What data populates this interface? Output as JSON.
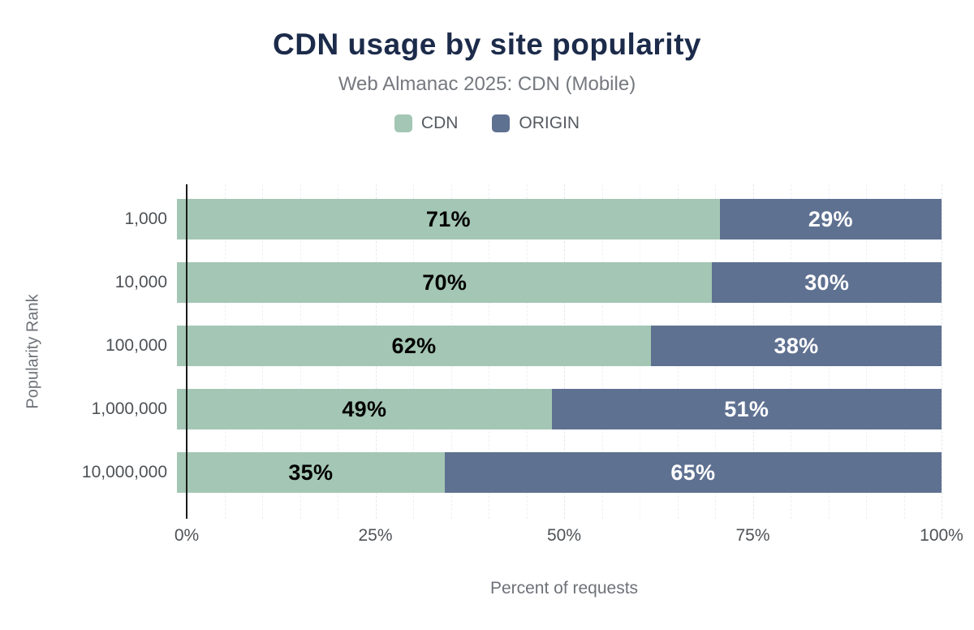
{
  "header": {
    "title": "CDN usage by site popularity",
    "subtitle": "Web Almanac 2025: CDN (Mobile)"
  },
  "chart_data": {
    "type": "bar",
    "orientation": "horizontal",
    "stacked": true,
    "title": "CDN usage by site popularity",
    "subtitle": "Web Almanac 2025: CDN (Mobile)",
    "xlabel": "Percent of requests",
    "ylabel": "Popularity Rank",
    "categories": [
      "1,000",
      "10,000",
      "100,000",
      "1,000,000",
      "10,000,000"
    ],
    "series": [
      {
        "name": "CDN",
        "color": "#a4c6b4",
        "label_color": "#000000",
        "values": [
          71,
          70,
          62,
          49,
          35
        ]
      },
      {
        "name": "ORIGIN",
        "color": "#5f7191",
        "label_color": "#ffffff",
        "values": [
          29,
          30,
          38,
          51,
          65
        ]
      }
    ],
    "x_ticks": [
      "0%",
      "25%",
      "50%",
      "75%",
      "100%"
    ],
    "xlim": [
      0,
      100
    ],
    "grid": true,
    "legend_position": "top",
    "value_suffix": "%"
  },
  "colors": {
    "title": "#1c2b4a",
    "subtitle": "#75787e",
    "axis_line": "#1a1a1a",
    "gridline": "#e4e7ea"
  }
}
